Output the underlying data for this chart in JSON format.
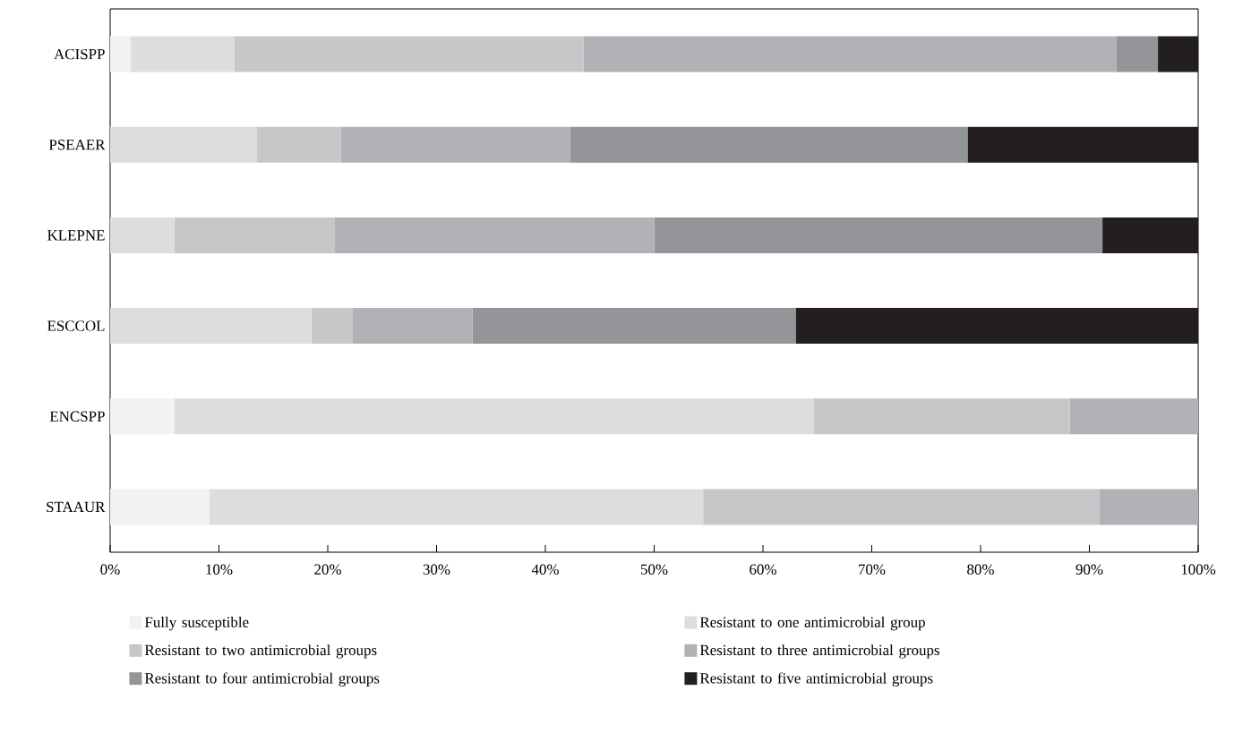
{
  "chart_data": {
    "type": "bar",
    "orientation": "horizontal",
    "stacked": true,
    "categories": [
      "ACISPP",
      "PSEAER",
      "KLEPNE",
      "ESCCOL",
      "ENCSPP",
      "STAAUR"
    ],
    "series": [
      {
        "name": "Fully susceptible",
        "color": "#f1f2f3",
        "values": [
          1.9,
          0,
          0,
          0,
          5.9,
          9.1
        ]
      },
      {
        "name": "Resistant to one antimicrobial group",
        "color": "#dcdddf",
        "values": [
          9.5,
          13.5,
          5.9,
          18.5,
          58.8,
          45.4
        ]
      },
      {
        "name": "Resistant to two antimicrobial groups",
        "color": "#c6c7c9",
        "values": [
          32.1,
          7.7,
          14.7,
          3.8,
          23.5,
          36.4
        ]
      },
      {
        "name": "Resistant to three antimicrobial groups",
        "color": "#b1b2b5",
        "values": [
          49.0,
          21.1,
          29.4,
          11.0,
          11.8,
          9.1
        ]
      },
      {
        "name": "Resistant to four antimicrobial groups",
        "color": "#949599",
        "values": [
          3.8,
          36.5,
          41.2,
          29.7,
          0,
          0
        ]
      },
      {
        "name": "Resistant to five antimicrobial groups",
        "color": "#231f20",
        "values": [
          3.7,
          21.2,
          8.8,
          37.0,
          0,
          0
        ]
      }
    ],
    "xlim": [
      0,
      100
    ],
    "xticks": [
      {
        "value": 0,
        "label": "0%"
      },
      {
        "value": 10,
        "label": "10%"
      },
      {
        "value": 20,
        "label": "20%"
      },
      {
        "value": 30,
        "label": "30%"
      },
      {
        "value": 40,
        "label": "40%"
      },
      {
        "value": 50,
        "label": "50%"
      },
      {
        "value": 60,
        "label": "60%"
      },
      {
        "value": 70,
        "label": "70%"
      },
      {
        "value": 80,
        "label": "80%"
      },
      {
        "value": 90,
        "label": "90%"
      },
      {
        "value": 100,
        "label": "100%"
      }
    ],
    "grid": false,
    "legend": "bottom"
  }
}
